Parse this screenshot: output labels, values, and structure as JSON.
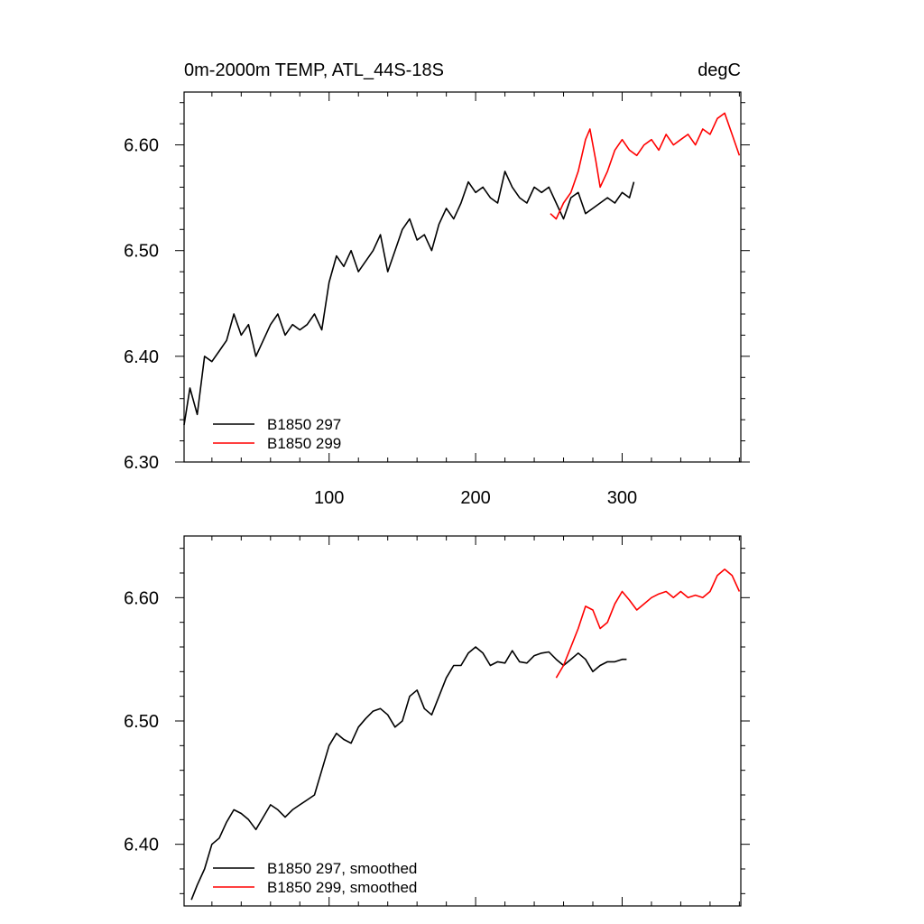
{
  "chart_data": [
    {
      "type": "line",
      "title": "0m-2000m TEMP, ATL_44S-18S",
      "units": "degC",
      "xlim": [
        1,
        381
      ],
      "ylim": [
        6.3,
        6.65
      ],
      "xticks": [
        100,
        200,
        300
      ],
      "xtick_labels": [
        "100",
        "200",
        "300"
      ],
      "yticks": [
        6.3,
        6.4,
        6.5,
        6.6
      ],
      "ytick_labels": [
        "6.30",
        "6.40",
        "6.50",
        "6.60"
      ],
      "legend": "bottom-left",
      "series": [
        {
          "name": "B1850 297",
          "color": "#000000",
          "x": [
            1,
            5,
            10,
            15,
            20,
            25,
            30,
            35,
            40,
            45,
            50,
            55,
            60,
            65,
            70,
            75,
            80,
            85,
            90,
            95,
            100,
            105,
            110,
            115,
            120,
            125,
            130,
            135,
            140,
            145,
            150,
            155,
            160,
            165,
            170,
            175,
            180,
            185,
            190,
            195,
            200,
            205,
            210,
            215,
            220,
            225,
            230,
            235,
            240,
            245,
            250,
            255,
            260,
            265,
            270,
            275,
            280,
            285,
            290,
            295,
            300,
            305,
            308
          ],
          "values": [
            6.335,
            6.37,
            6.345,
            6.4,
            6.395,
            6.405,
            6.415,
            6.44,
            6.42,
            6.43,
            6.4,
            6.415,
            6.43,
            6.44,
            6.42,
            6.43,
            6.425,
            6.43,
            6.44,
            6.425,
            6.47,
            6.495,
            6.485,
            6.5,
            6.48,
            6.49,
            6.5,
            6.515,
            6.48,
            6.5,
            6.52,
            6.53,
            6.51,
            6.515,
            6.5,
            6.525,
            6.54,
            6.53,
            6.545,
            6.565,
            6.555,
            6.56,
            6.55,
            6.545,
            6.575,
            6.56,
            6.55,
            6.545,
            6.56,
            6.555,
            6.56,
            6.545,
            6.53,
            6.55,
            6.555,
            6.535,
            6.54,
            6.545,
            6.55,
            6.545,
            6.555,
            6.55,
            6.565
          ]
        },
        {
          "name": "B1850 299",
          "color": "#ff0000",
          "x": [
            251,
            255,
            260,
            265,
            270,
            275,
            278,
            282,
            285,
            290,
            295,
            300,
            305,
            310,
            315,
            320,
            325,
            330,
            335,
            340,
            345,
            350,
            355,
            360,
            365,
            370,
            375,
            380
          ],
          "values": [
            6.535,
            6.53,
            6.545,
            6.555,
            6.575,
            6.605,
            6.615,
            6.585,
            6.56,
            6.575,
            6.595,
            6.605,
            6.595,
            6.59,
            6.6,
            6.605,
            6.595,
            6.61,
            6.6,
            6.605,
            6.61,
            6.6,
            6.615,
            6.61,
            6.625,
            6.63,
            6.61,
            6.59
          ]
        }
      ]
    },
    {
      "type": "line",
      "xlim": [
        1,
        381
      ],
      "ylim": [
        6.35,
        6.65
      ],
      "xticks": [
        100,
        200,
        300
      ],
      "yticks": [
        6.4,
        6.5,
        6.6
      ],
      "ytick_labels": [
        "6.40",
        "6.50",
        "6.60"
      ],
      "legend": "bottom-left",
      "series": [
        {
          "name": "B1850 297, smoothed",
          "color": "#000000",
          "x": [
            6,
            10,
            15,
            20,
            25,
            30,
            35,
            40,
            45,
            50,
            55,
            60,
            65,
            70,
            75,
            80,
            85,
            90,
            95,
            100,
            105,
            110,
            115,
            120,
            125,
            130,
            135,
            140,
            145,
            150,
            155,
            160,
            165,
            170,
            175,
            180,
            185,
            190,
            195,
            200,
            205,
            210,
            215,
            220,
            225,
            230,
            235,
            240,
            245,
            250,
            255,
            260,
            265,
            270,
            275,
            280,
            285,
            290,
            295,
            300,
            303
          ],
          "values": [
            6.355,
            6.367,
            6.38,
            6.4,
            6.405,
            6.418,
            6.428,
            6.425,
            6.42,
            6.412,
            6.422,
            6.432,
            6.428,
            6.422,
            6.428,
            6.432,
            6.436,
            6.44,
            6.46,
            6.48,
            6.49,
            6.485,
            6.482,
            6.495,
            6.502,
            6.508,
            6.51,
            6.505,
            6.495,
            6.5,
            6.52,
            6.525,
            6.51,
            6.505,
            6.52,
            6.535,
            6.545,
            6.545,
            6.555,
            6.56,
            6.555,
            6.545,
            6.548,
            6.547,
            6.557,
            6.548,
            6.547,
            6.553,
            6.555,
            6.556,
            6.55,
            6.545,
            6.55,
            6.555,
            6.55,
            6.54,
            6.545,
            6.548,
            6.548,
            6.55,
            6.55
          ]
        },
        {
          "name": "B1850 299, smoothed",
          "color": "#ff0000",
          "x": [
            255,
            260,
            265,
            270,
            275,
            280,
            285,
            290,
            295,
            300,
            305,
            310,
            315,
            320,
            325,
            330,
            335,
            340,
            345,
            350,
            355,
            360,
            365,
            370,
            375,
            380
          ],
          "values": [
            6.535,
            6.545,
            6.56,
            6.575,
            6.593,
            6.59,
            6.575,
            6.58,
            6.595,
            6.605,
            6.598,
            6.59,
            6.595,
            6.6,
            6.603,
            6.605,
            6.6,
            6.605,
            6.6,
            6.602,
            6.6,
            6.605,
            6.618,
            6.623,
            6.618,
            6.605
          ]
        }
      ]
    }
  ]
}
